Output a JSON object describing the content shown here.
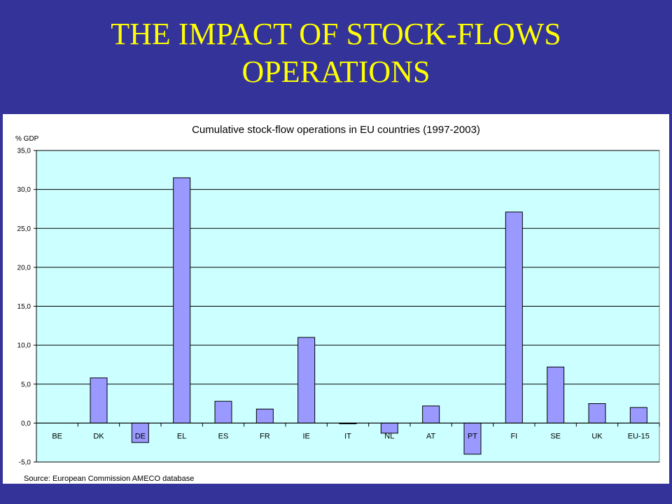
{
  "slide": {
    "title": "THE IMPACT OF STOCK-FLOWS\nOPERATIONS"
  },
  "colors": {
    "background": "#333399",
    "title": "#ffff00",
    "plot_area": "#ccffff",
    "bar_fill": "#9999ff",
    "bar_stroke": "#000000"
  },
  "chart_data": {
    "type": "bar",
    "title": "Cumulative stock-flow operations in EU countries (1997-2003)",
    "ylabel": "% GDP",
    "xlabel": "",
    "source": "Source: European Commission AMECO database",
    "categories": [
      "BE",
      "DK",
      "DE",
      "EL",
      "ES",
      "FR",
      "IE",
      "IT",
      "NL",
      "AT",
      "PT",
      "FI",
      "SE",
      "UK",
      "EU-15"
    ],
    "values": [
      0.0,
      5.8,
      -2.5,
      31.5,
      2.8,
      1.8,
      11.0,
      -0.1,
      -1.3,
      2.2,
      -4.0,
      27.1,
      7.2,
      2.5,
      2.0
    ],
    "ylim": [
      -5,
      35
    ],
    "yticks": [
      -5,
      0,
      5,
      10,
      15,
      20,
      25,
      30,
      35
    ],
    "ytick_labels": [
      "-5,0",
      "0,0",
      "5,0",
      "10,0",
      "15,0",
      "20,0",
      "25,0",
      "30,0",
      "35,0"
    ],
    "grid": "horizontal",
    "legend": "none"
  }
}
